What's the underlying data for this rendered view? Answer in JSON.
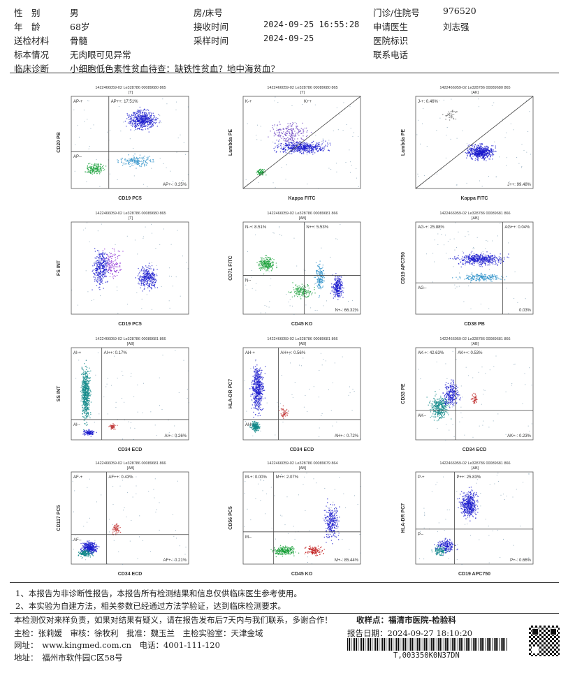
{
  "header": {
    "rows": [
      [
        {
          "k": "性　别",
          "v": "男"
        },
        {
          "k": "房/床号",
          "v": ""
        },
        {
          "k": "门诊/住院号",
          "v": "976520"
        }
      ],
      [
        {
          "k": "年　龄",
          "v": "68岁"
        },
        {
          "k": "接收时间",
          "v": "2024-09-25 16:55:28"
        },
        {
          "k": "申请医生",
          "v": "刘志强"
        }
      ],
      [
        {
          "k": "送检材料",
          "v": "骨髓"
        },
        {
          "k": "采样时间",
          "v": "2024-09-25"
        },
        {
          "k": "医院标识",
          "v": ""
        }
      ],
      [
        {
          "k": "标本情况",
          "v": "无肉眼可见异常"
        },
        {
          "k": "",
          "v": ""
        },
        {
          "k": "联系电话",
          "v": ""
        }
      ]
    ],
    "diagnosis_label": "临床诊断",
    "diagnosis": "小细胞低色素性贫血待查：缺铁性贫血？地中海贫血？"
  },
  "plots": [
    {
      "hdr": "1422466059-02 Le328786 00089680 865",
      "tag": "[T]",
      "xlabel": "CD19 PC5",
      "ylabel": "CD20 PB",
      "q": [
        "AP-+",
        "AP++: 17.51%",
        "AP--",
        "AP+-: 0.25%"
      ]
    },
    {
      "hdr": "1422466059-02 Le328786 00089680 865",
      "tag": "[T]",
      "xlabel": "Kappa FITC",
      "ylabel": "Lambda PE",
      "q": [
        "K-+",
        "K++",
        "",
        ""
      ]
    },
    {
      "hdr": "1422466059-02 Le328786 00089680 865",
      "tag": "[AK]",
      "xlabel": "Kappa FITC",
      "ylabel": "Lambda PE",
      "q": [
        "J-+: 0.46%",
        "",
        "",
        "J++: 99.48%"
      ]
    },
    {
      "hdr": "1422466059-02 Le328786 00089680 865",
      "tag": "[T]",
      "xlabel": "CD19 PC5",
      "ylabel": "FS INT",
      "q": [
        "",
        "",
        "",
        ""
      ]
    },
    {
      "hdr": "1422466059-02 Le328786 00089681 866",
      "tag": "[AB]",
      "xlabel": "CD45 KO",
      "ylabel": "CD71 FITC",
      "q": [
        "N-+: 8.51%",
        "N++: 5.53%",
        "N--",
        "N+-: 66.32%"
      ]
    },
    {
      "hdr": "1422466059-02 Le328786 00089681 866",
      "tag": "[AB]",
      "xlabel": "CD38 PB",
      "ylabel": "CD19 APC750",
      "q": [
        "AG-+: 25.88%",
        "AG++: 0.04%",
        "AG--",
        "0.03%"
      ]
    },
    {
      "hdr": "1422466059-02 Le328786 00089681 866",
      "tag": "[AB]",
      "xlabel": "CD34 ECD",
      "ylabel": "SS INT",
      "q": [
        "AI-+",
        "AI++: 0.17%",
        "AI--",
        "AI+-: 0.26%"
      ]
    },
    {
      "hdr": "1422466059-02 Le328786 00089681 866",
      "tag": "[AB]",
      "xlabel": "CD34 ECD",
      "ylabel": "HLA-DR PC7",
      "q": [
        "AH-+",
        "AH++: 0.56%",
        "AH--",
        "AH+-: 0.72%"
      ]
    },
    {
      "hdr": "1422466059-02 Le328786 00089681 866",
      "tag": "[AB]",
      "xlabel": "CD34 ECD",
      "ylabel": "CD33 PE",
      "q": [
        "AK-+: 42.63%",
        "AK++: 0.53%",
        "AK--",
        "AK+-: 0.23%"
      ]
    },
    {
      "hdr": "1422466059-02 Le328786 00089681 866",
      "tag": "[AB]",
      "xlabel": "CD34 ECD",
      "ylabel": "CD117 PC5",
      "q": [
        "AF-+",
        "AF++: 0.43%",
        "AF--",
        "AF+-: 0.21%"
      ]
    },
    {
      "hdr": "1422466059-02 Le328786 00089679 864",
      "tag": "[AB]",
      "xlabel": "CD45 KO",
      "ylabel": "CD56 PC5",
      "q": [
        "M-+: 0.00%",
        "M++: 2.07%",
        "M--",
        "M+-: 85.44%"
      ]
    },
    {
      "hdr": "1422466059-02 Le328786 00089681 866",
      "tag": "[AB]",
      "xlabel": "CD19 APC750",
      "ylabel": "HLA-DR PC7",
      "q": [
        "P-+",
        "P++: 25.83%",
        "P--",
        "P+-: 0.66%"
      ]
    }
  ],
  "notes": [
    "1、本报告为非诊断性报告，本报告所有检测结果和信息仅供临床医生参考使用。",
    "2、本实验为自建方法，相关参数已经通过方法学验证，达到临床检测要求。"
  ],
  "footer": {
    "disclaimer": "本检测仅对来样负责，如果对结果有疑义，请在报告发布后7天内与我们联系，多谢合作！",
    "receiver": "收样点：福清市医院-检验科",
    "signers": "主检：张莉媛　审核：徐牧利　批准：魏玉兰　主检实验室：天津金域",
    "report_date": "报告日期：2024-09-27 18:10:20",
    "website": "网址：　www.kingmed.com.cn　电话：4001-111-120",
    "address": "地址：　福州市软件园C区58号",
    "barcode_text": "T,003350K0N37DN"
  }
}
